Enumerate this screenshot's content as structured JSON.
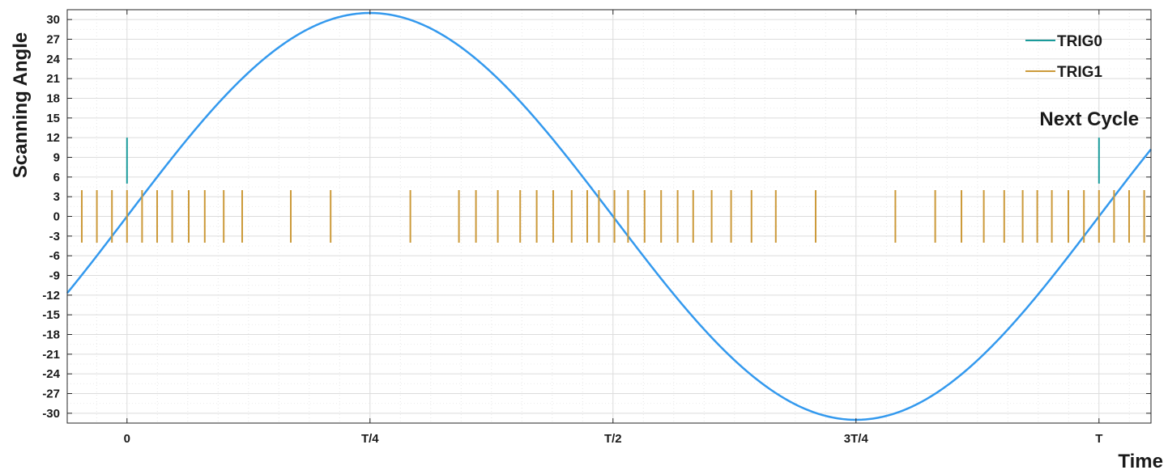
{
  "chart_data": {
    "type": "line",
    "xlabel": "Time",
    "ylabel": "Scanning Angle",
    "x_unit": "cycle period T (fraction of a cycle)",
    "xlim": [
      -0.0615,
      1.0535
    ],
    "ylim": [
      -31.5,
      31.5
    ],
    "x_ticks": [
      {
        "value": 0,
        "label": "0"
      },
      {
        "value": 0.25,
        "label": "T/4"
      },
      {
        "value": 0.5,
        "label": "T/2"
      },
      {
        "value": 0.75,
        "label": "3T/4"
      },
      {
        "value": 1,
        "label": "T"
      }
    ],
    "y_ticks": [
      30,
      27,
      24,
      21,
      18,
      15,
      12,
      9,
      6,
      3,
      0,
      -3,
      -6,
      -9,
      -12,
      -15,
      -18,
      -21,
      -24,
      -27,
      -30
    ],
    "grid": true,
    "legend_position": "top-right",
    "series": [
      {
        "name": "",
        "kind": "curve",
        "color": "#3399ee",
        "amplitude": 31,
        "x_range": [
          -0.0615,
          1.0535
        ],
        "x": [
          -0.06,
          0,
          0.05,
          0.1,
          0.15,
          0.2,
          0.25,
          0.3,
          0.35,
          0.4,
          0.45,
          0.5,
          0.55,
          0.6,
          0.65,
          0.7,
          0.75,
          0.8,
          0.85,
          0.9,
          0.95,
          1,
          1.05
        ],
        "y": [
          -11.5,
          0,
          9.6,
          18.2,
          25.1,
          29.5,
          31,
          29.5,
          25.1,
          18.2,
          9.6,
          0,
          -9.6,
          -18.2,
          -25.1,
          -29.5,
          -31,
          -29.5,
          -25.1,
          -18.2,
          -9.6,
          0,
          9.6
        ]
      },
      {
        "name": "TRIG0",
        "kind": "pulses",
        "color": "#1a9b9b",
        "y_range": [
          5,
          12
        ],
        "x": [
          0,
          1
        ]
      },
      {
        "name": "TRIG1",
        "kind": "pulses",
        "color": "#cc9a3a",
        "y_range": [
          -4,
          4
        ],
        "x": [
          -0.0465,
          -0.031,
          -0.0155,
          0,
          0.0155,
          0.031,
          0.0465,
          0.0635,
          0.08,
          0.0995,
          0.1185,
          0.1685,
          0.2095,
          0.2915,
          0.3415,
          0.359,
          0.3815,
          0.4045,
          0.4215,
          0.4385,
          0.4575,
          0.4735,
          0.4855,
          0.5015,
          0.5155,
          0.5325,
          0.5495,
          0.5665,
          0.5825,
          0.6015,
          0.6215,
          0.6425,
          0.6675,
          0.7085,
          0.7905,
          0.8315,
          0.8585,
          0.8815,
          0.9025,
          0.9215,
          0.9365,
          0.9515,
          0.9685,
          0.9845,
          1,
          1.0155,
          1.031,
          1.0465
        ]
      }
    ],
    "annotations": [
      {
        "text": "Next Cycle",
        "x": 1,
        "y": 15
      }
    ]
  }
}
